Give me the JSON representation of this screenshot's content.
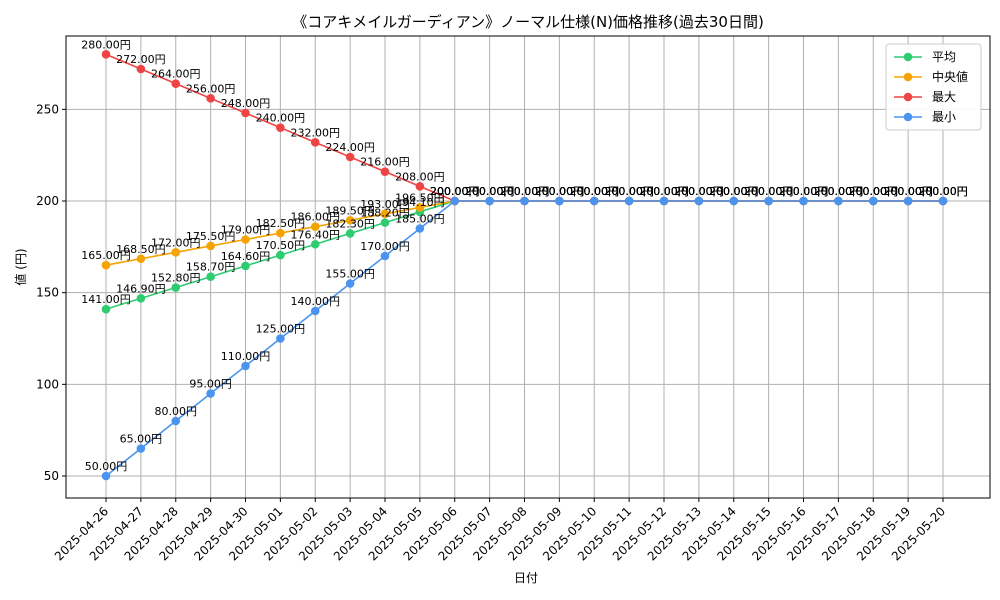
{
  "chart_data": {
    "type": "line",
    "title": "《コアキメイルガーディアン》ノーマル仕様(N)価格推移(過去30日間)",
    "xlabel": "日付",
    "ylabel": "値 (円)",
    "ylim": [
      38,
      290
    ],
    "yticks": [
      50,
      100,
      150,
      200,
      250
    ],
    "grid": true,
    "legend_position": "top-right",
    "label_suffix": "円",
    "categories": [
      "2025-04-26",
      "2025-04-27",
      "2025-04-28",
      "2025-04-29",
      "2025-04-30",
      "2025-05-01",
      "2025-05-02",
      "2025-05-03",
      "2025-05-04",
      "2025-05-05",
      "2025-05-06",
      "2025-05-07",
      "2025-05-08",
      "2025-05-09",
      "2025-05-10",
      "2025-05-11",
      "2025-05-12",
      "2025-05-13",
      "2025-05-14",
      "2025-05-15",
      "2025-05-16",
      "2025-05-17",
      "2025-05-18",
      "2025-05-19",
      "2025-05-20"
    ],
    "series": [
      {
        "name": "平均",
        "color": "#2ecc71",
        "values": [
          141.0,
          146.9,
          152.8,
          158.7,
          164.6,
          170.5,
          176.4,
          182.3,
          188.2,
          194.1,
          200,
          200,
          200,
          200,
          200,
          200,
          200,
          200,
          200,
          200,
          200,
          200,
          200,
          200,
          200
        ]
      },
      {
        "name": "中央値",
        "color": "#f5a300",
        "values": [
          165.0,
          168.5,
          172.0,
          175.5,
          179.0,
          182.5,
          186.0,
          189.5,
          193.0,
          196.5,
          200,
          200,
          200,
          200,
          200,
          200,
          200,
          200,
          200,
          200,
          200,
          200,
          200,
          200,
          200
        ]
      },
      {
        "name": "最大",
        "color": "#ef4444",
        "values": [
          280,
          272,
          264,
          256,
          248,
          240,
          232,
          224,
          216,
          208,
          200,
          200,
          200,
          200,
          200,
          200,
          200,
          200,
          200,
          200,
          200,
          200,
          200,
          200,
          200
        ]
      },
      {
        "name": "最小",
        "color": "#4a94f0",
        "values": [
          50,
          65,
          80,
          95,
          110,
          125,
          140,
          155,
          170,
          185,
          200,
          200,
          200,
          200,
          200,
          200,
          200,
          200,
          200,
          200,
          200,
          200,
          200,
          200,
          200
        ]
      }
    ]
  }
}
